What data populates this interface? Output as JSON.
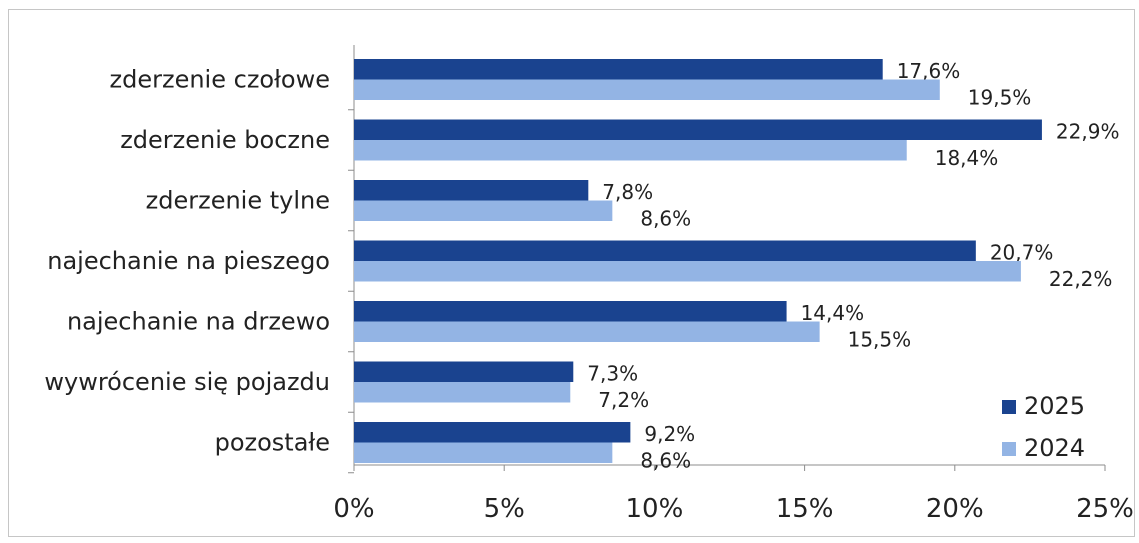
{
  "chart_data": {
    "type": "bar",
    "orientation": "horizontal",
    "categories": [
      "zderzenie czołowe",
      "zderzenie boczne",
      "zderzenie tylne",
      "najechanie na pieszego",
      "najechanie na drzewo",
      "wywrócenie się pojazdu",
      "pozostałe"
    ],
    "series": [
      {
        "name": "2025",
        "color": "#1a438f",
        "values": [
          17.6,
          22.9,
          7.8,
          20.7,
          14.4,
          7.3,
          9.2
        ],
        "labels": [
          "17,6%",
          "22,9%",
          "7,8%",
          "20,7%",
          "14,4%",
          "7,3%",
          "9,2%"
        ]
      },
      {
        "name": "2024",
        "color": "#93b4e4",
        "values": [
          19.5,
          18.4,
          8.6,
          22.2,
          15.5,
          7.2,
          8.6
        ],
        "labels": [
          "19,5%",
          "18,4%",
          "8,6%",
          "22,2%",
          "15,5%",
          "7,2%",
          "8,6%"
        ]
      }
    ],
    "xlim": [
      0,
      25
    ],
    "xticks": [
      0,
      5,
      10,
      15,
      20,
      25
    ],
    "xtick_labels": [
      "0%",
      "5%",
      "10%",
      "15%",
      "20%",
      "25%"
    ],
    "grid": false,
    "legend_position": "bottom-right"
  }
}
